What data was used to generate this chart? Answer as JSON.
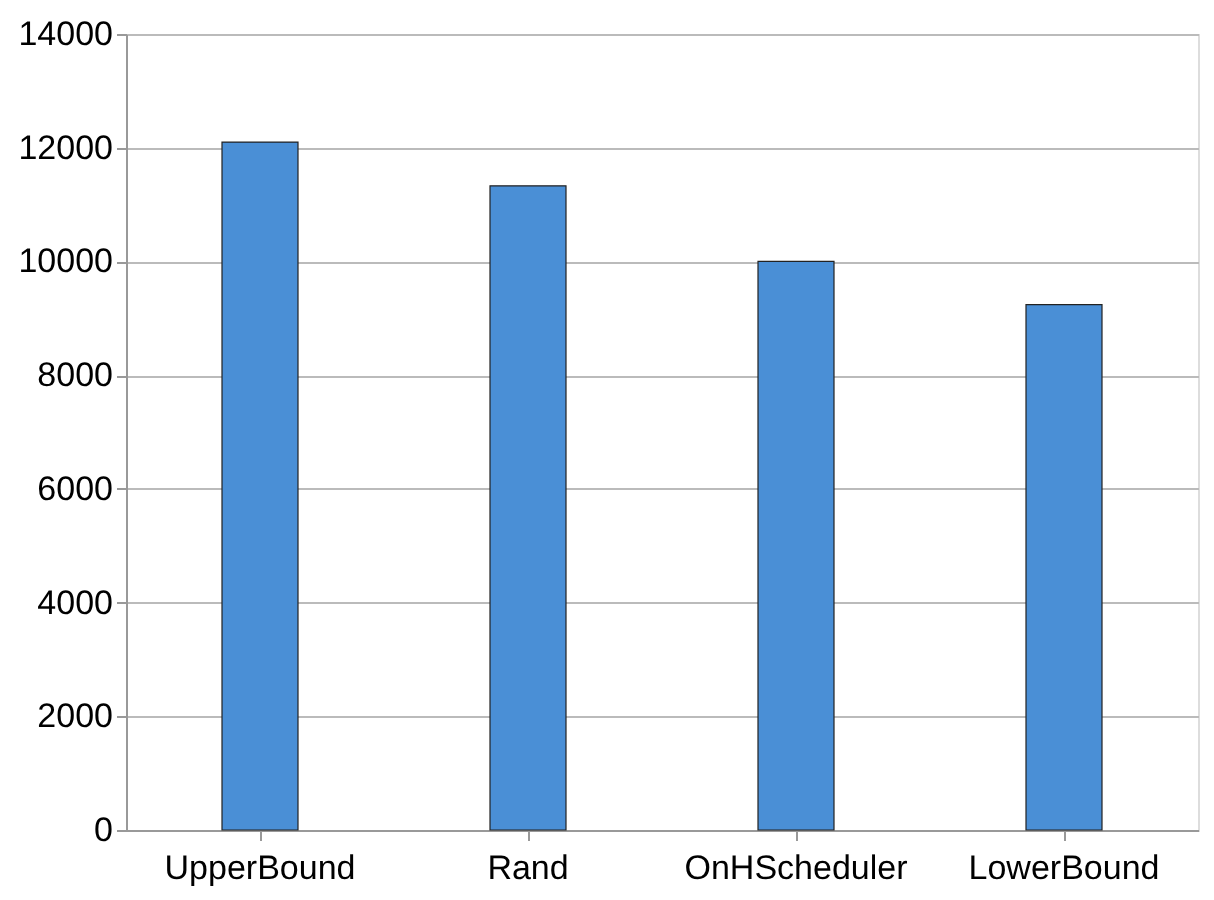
{
  "chart_data": {
    "type": "bar",
    "categories": [
      "UpperBound",
      "Rand",
      "OnHScheduler",
      "LowerBound"
    ],
    "values": [
      12100,
      11330,
      10000,
      9240
    ],
    "color": "#4a8fd6",
    "ylim": [
      0,
      14000
    ],
    "yticks": [
      0,
      2000,
      4000,
      6000,
      8000,
      10000,
      12000,
      14000
    ],
    "grid": "y"
  }
}
